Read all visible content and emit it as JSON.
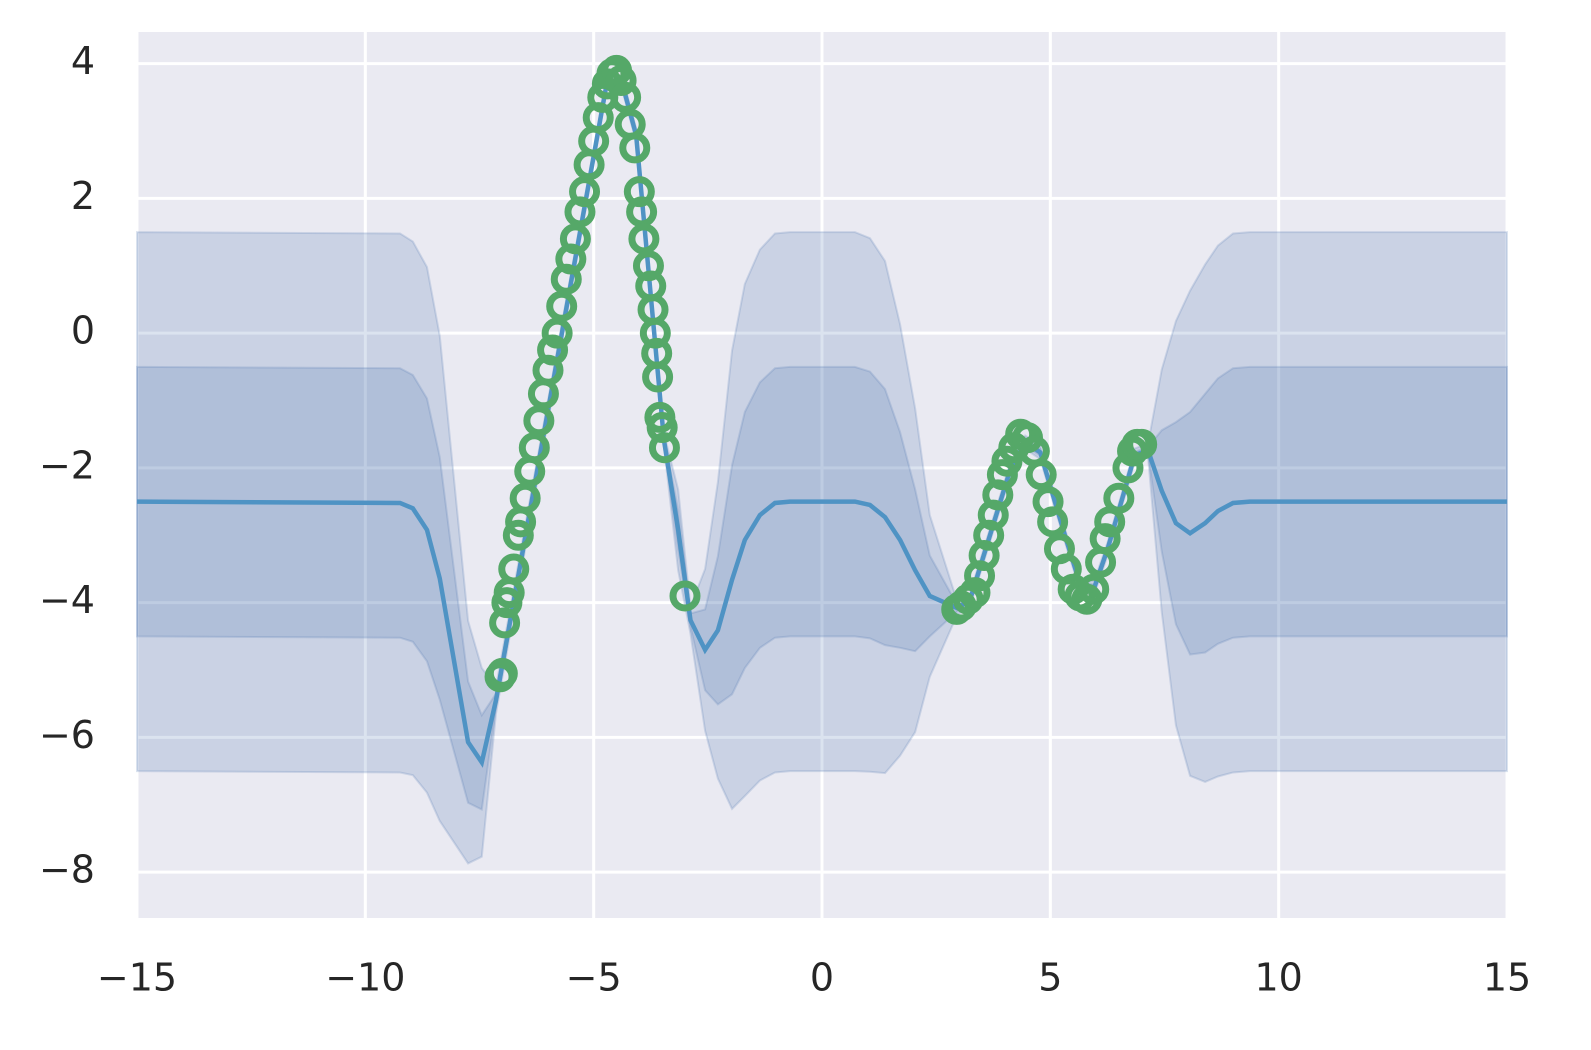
{
  "chart_data": {
    "type": "line",
    "x": [
      -15,
      -9.24,
      -8.96,
      -8.65,
      -8.37,
      -7.75,
      -7.45,
      -7.14,
      -4.71,
      -4.38,
      -4.07,
      -3.46,
      -3.15,
      -2.88,
      -2.56,
      -2.28,
      -1.97,
      -1.69,
      -1.36,
      -1.03,
      -0.7,
      0.72,
      1.05,
      1.38,
      1.71,
      2.04,
      2.36,
      2.96,
      3.24,
      4.12,
      4.45,
      4.78,
      5.35,
      5.66,
      5.96,
      6.26,
      6.85,
      7.14,
      7.44,
      7.75,
      8.06,
      8.39,
      8.67,
      9.0,
      9.37,
      15
    ],
    "series": [
      {
        "color": "#4f93c4",
        "values": [
          -2.5,
          -2.52,
          -2.6,
          -2.92,
          -3.64,
          -6.07,
          -6.37,
          -5.45,
          3.72,
          3.72,
          2.94,
          -1.59,
          -2.92,
          -4.26,
          -4.7,
          -4.41,
          -3.66,
          -3.07,
          -2.7,
          -2.52,
          -2.5,
          -2.5,
          -2.55,
          -2.73,
          -3.07,
          -3.52,
          -3.9,
          -4.08,
          -3.96,
          -2.03,
          -1.62,
          -1.77,
          -3.07,
          -3.74,
          -3.78,
          -3.19,
          -1.81,
          -1.74,
          -2.34,
          -2.82,
          -2.97,
          -2.82,
          -2.64,
          -2.52,
          -2.5,
          -2.5
        ]
      }
    ],
    "bands": [
      {
        "color": "#4c72b0",
        "opacity": 0.2,
        "upper": [
          1.5,
          1.48,
          1.36,
          0.98,
          -0.04,
          -4.27,
          -4.97,
          -5.25,
          3.82,
          3.82,
          3.04,
          -1.49,
          -2.32,
          -4.06,
          -3.5,
          -2.21,
          -0.26,
          0.73,
          1.24,
          1.48,
          1.5,
          1.5,
          1.41,
          1.07,
          0.13,
          -1.12,
          -2.7,
          -3.98,
          -3.86,
          -1.93,
          -1.52,
          -1.67,
          -2.97,
          -3.64,
          -3.68,
          -3.09,
          -1.71,
          -1.64,
          -0.54,
          0.18,
          0.63,
          1.02,
          1.3,
          1.48,
          1.5,
          1.5
        ],
        "lower": [
          -6.5,
          -6.52,
          -6.56,
          -6.82,
          -7.24,
          -7.87,
          -7.77,
          -5.65,
          3.62,
          3.62,
          2.84,
          -1.69,
          -3.52,
          -4.46,
          -5.9,
          -6.61,
          -7.06,
          -6.87,
          -6.64,
          -6.52,
          -6.5,
          -6.5,
          -6.51,
          -6.53,
          -6.27,
          -5.92,
          -5.1,
          -4.18,
          -4.06,
          -2.13,
          -1.72,
          -1.87,
          -3.17,
          -3.84,
          -3.88,
          -3.29,
          -1.91,
          -1.84,
          -4.14,
          -5.82,
          -6.57,
          -6.66,
          -6.58,
          -6.52,
          -6.5,
          -6.5
        ]
      },
      {
        "color": "#4c72b0",
        "opacity": 0.2,
        "upper": [
          -0.5,
          -0.52,
          -0.62,
          -0.97,
          -1.84,
          -5.17,
          -5.67,
          -5.35,
          3.77,
          3.77,
          2.99,
          -1.54,
          -2.62,
          -4.16,
          -4.1,
          -3.31,
          -1.96,
          -1.17,
          -0.73,
          -0.52,
          -0.5,
          -0.5,
          -0.57,
          -0.83,
          -1.47,
          -2.32,
          -3.3,
          -4.03,
          -3.91,
          -1.98,
          -1.57,
          -1.72,
          -3.02,
          -3.69,
          -3.73,
          -3.14,
          -1.76,
          -1.69,
          -1.44,
          -1.32,
          -1.17,
          -0.9,
          -0.67,
          -0.52,
          -0.5,
          -0.5
        ],
        "lower": [
          -4.5,
          -4.52,
          -4.58,
          -4.87,
          -5.44,
          -6.97,
          -7.07,
          -5.55,
          3.67,
          3.67,
          2.89,
          -1.64,
          -3.22,
          -4.36,
          -5.3,
          -5.51,
          -5.36,
          -4.97,
          -4.67,
          -4.52,
          -4.5,
          -4.5,
          -4.53,
          -4.63,
          -4.67,
          -4.72,
          -4.5,
          -4.13,
          -4.01,
          -2.08,
          -1.67,
          -1.82,
          -3.12,
          -3.79,
          -3.83,
          -3.24,
          -1.86,
          -1.79,
          -3.24,
          -4.32,
          -4.77,
          -4.74,
          -4.61,
          -4.52,
          -4.5,
          -4.5
        ]
      }
    ],
    "scatter": {
      "color": "#55a868",
      "x": [
        -7.05,
        -7.0,
        -6.95,
        -6.9,
        -6.85,
        -6.75,
        -6.65,
        -6.6,
        -6.5,
        -6.4,
        -6.3,
        -6.2,
        -6.1,
        -6.0,
        -5.9,
        -5.8,
        -5.7,
        -5.6,
        -5.5,
        -5.4,
        -5.3,
        -5.2,
        -5.1,
        -5.0,
        -4.9,
        -4.8,
        -4.7,
        -4.6,
        -4.5,
        -4.4,
        -4.3,
        -4.2,
        -4.1,
        -4.0,
        -3.95,
        -3.9,
        -3.8,
        -3.75,
        -3.7,
        -3.65,
        -3.62,
        -3.6,
        -3.55,
        -3.5,
        -3.45,
        -3.0,
        2.95,
        3.05,
        3.2,
        3.35,
        3.45,
        3.55,
        3.65,
        3.75,
        3.85,
        3.95,
        4.05,
        4.2,
        4.35,
        4.5,
        4.65,
        4.8,
        4.95,
        5.05,
        5.2,
        5.35,
        5.5,
        5.65,
        5.8,
        5.95,
        6.1,
        6.2,
        6.3,
        6.5,
        6.7,
        6.8,
        6.9,
        7.0
      ],
      "y": [
        -5.1,
        -5.05,
        -4.3,
        -4.0,
        -3.85,
        -3.5,
        -3.0,
        -2.8,
        -2.45,
        -2.05,
        -1.7,
        -1.3,
        -0.9,
        -0.55,
        -0.25,
        0.0,
        0.4,
        0.8,
        1.1,
        1.4,
        1.8,
        2.1,
        2.5,
        2.85,
        3.2,
        3.5,
        3.7,
        3.85,
        3.9,
        3.75,
        3.5,
        3.1,
        2.75,
        2.1,
        1.8,
        1.4,
        1.0,
        0.7,
        0.35,
        0.0,
        -0.3,
        -0.65,
        -1.25,
        -1.4,
        -1.7,
        -3.9,
        -4.1,
        -4.05,
        -3.95,
        -3.85,
        -3.6,
        -3.3,
        -3.0,
        -2.7,
        -2.4,
        -2.1,
        -1.9,
        -1.7,
        -1.5,
        -1.55,
        -1.75,
        -2.1,
        -2.5,
        -2.8,
        -3.2,
        -3.5,
        -3.8,
        -3.9,
        -3.95,
        -3.8,
        -3.4,
        -3.05,
        -2.8,
        -2.45,
        -2.0,
        -1.75,
        -1.65,
        -1.65
      ]
    },
    "xlim": [
      -15,
      15
    ],
    "ylim": [
      -8.68,
      4.47
    ],
    "xticks": [
      {
        "value": -15,
        "label": "−15"
      },
      {
        "value": -10,
        "label": "−10"
      },
      {
        "value": -5,
        "label": "−5"
      },
      0,
      5,
      10,
      15
    ],
    "yticks": [
      {
        "value": -8,
        "label": "−8"
      },
      {
        "value": -6,
        "label": "−6"
      },
      {
        "value": -4,
        "label": "−4"
      },
      {
        "value": -2,
        "label": "−2"
      },
      0,
      2,
      4
    ],
    "grid": true
  }
}
